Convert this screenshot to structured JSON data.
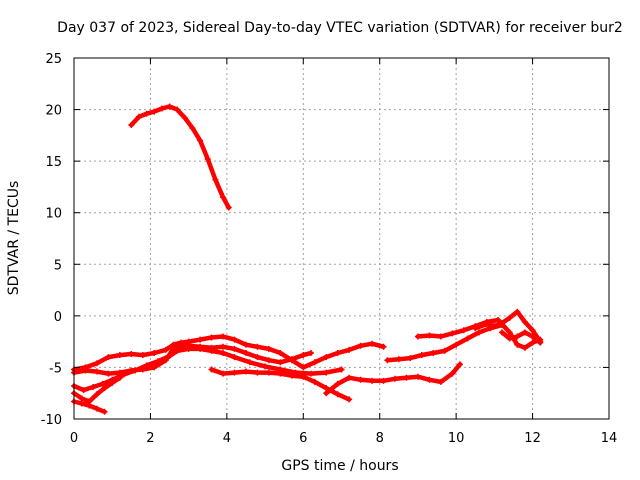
{
  "chart_data": {
    "type": "line",
    "title": "Day 037 of 2023, Sidereal Day-to-day VTEC variation (SDTVAR) for receiver bur2",
    "xlabel": "GPS time / hours",
    "ylabel": "SDTVAR / TECUs",
    "xlim": [
      0,
      14
    ],
    "ylim": [
      -10,
      25
    ],
    "xticks": [
      0,
      2,
      4,
      6,
      8,
      10,
      12,
      14
    ],
    "yticks": [
      -10,
      -5,
      0,
      5,
      10,
      15,
      20,
      25
    ],
    "grid": true,
    "color": "#ff0000",
    "series": [
      {
        "x": [
          1.5,
          1.7,
          1.9,
          2.1,
          2.3,
          2.5,
          2.7,
          2.9,
          3.1,
          3.3,
          3.5,
          3.7,
          3.9,
          4.05
        ],
        "y": [
          18.5,
          19.3,
          19.6,
          19.8,
          20.1,
          20.3,
          20.0,
          19.2,
          18.2,
          17.0,
          15.2,
          13.2,
          11.5,
          10.5
        ]
      },
      {
        "x": [
          0.0,
          0.3,
          0.6,
          0.9,
          1.2,
          1.5,
          1.8,
          2.1,
          2.4,
          2.6,
          2.8,
          3.0,
          3.3,
          3.6,
          3.9,
          4.2,
          4.5,
          4.8,
          5.1,
          5.4,
          5.7,
          6.0,
          6.3,
          6.6,
          6.9,
          7.2,
          7.5,
          7.8,
          8.1
        ],
        "y": [
          -5.2,
          -5.0,
          -4.6,
          -4.0,
          -3.8,
          -3.7,
          -3.8,
          -3.6,
          -3.3,
          -2.8,
          -2.6,
          -2.5,
          -2.3,
          -2.1,
          -2.0,
          -2.3,
          -2.8,
          -3.0,
          -3.2,
          -3.6,
          -4.3,
          -5.0,
          -4.5,
          -4.0,
          -3.6,
          -3.3,
          -2.9,
          -2.7,
          -3.0
        ]
      },
      {
        "x": [
          0.0,
          0.3,
          0.6,
          0.9,
          1.2,
          1.5,
          1.8,
          2.1,
          2.4,
          2.6,
          2.8,
          3.0,
          3.3,
          3.6,
          3.9,
          4.2,
          4.5,
          4.8,
          5.1,
          5.4,
          5.7,
          6.0,
          6.2
        ],
        "y": [
          -5.5,
          -5.3,
          -5.4,
          -5.6,
          -5.5,
          -5.3,
          -5.2,
          -5.0,
          -4.3,
          -3.2,
          -2.9,
          -2.9,
          -3.0,
          -3.1,
          -3.0,
          -3.2,
          -3.6,
          -4.0,
          -4.3,
          -4.5,
          -4.2,
          -3.8,
          -3.6
        ]
      },
      {
        "x": [
          0.0,
          0.25,
          0.5,
          0.75,
          1.0,
          1.3,
          1.6,
          1.9,
          2.2,
          2.5,
          2.7,
          3.0,
          3.3,
          3.6,
          3.9,
          4.2,
          4.6,
          5.0,
          5.4,
          5.8,
          6.2,
          6.6,
          7.0
        ],
        "y": [
          -6.8,
          -7.2,
          -6.9,
          -6.6,
          -6.2,
          -5.7,
          -5.3,
          -4.8,
          -4.4,
          -3.9,
          -3.4,
          -3.2,
          -3.2,
          -3.4,
          -3.6,
          -4.0,
          -4.5,
          -4.9,
          -5.2,
          -5.5,
          -5.6,
          -5.5,
          -5.2
        ]
      },
      {
        "x": [
          0.0,
          0.2,
          0.4,
          0.6,
          0.8,
          1.0,
          1.2
        ],
        "y": [
          -7.5,
          -8.0,
          -8.3,
          -7.6,
          -7.0,
          -6.5,
          -6.0
        ]
      },
      {
        "x": [
          0.0,
          0.2,
          0.4,
          0.6,
          0.8
        ],
        "y": [
          -8.3,
          -8.5,
          -8.7,
          -9.0,
          -9.3
        ]
      },
      {
        "x": [
          3.6,
          3.9,
          4.2,
          4.5,
          4.8,
          5.1,
          5.4,
          5.7,
          6.0,
          6.3,
          6.6,
          6.9,
          7.2
        ],
        "y": [
          -5.2,
          -5.6,
          -5.5,
          -5.4,
          -5.5,
          -5.5,
          -5.6,
          -5.8,
          -5.9,
          -6.4,
          -7.0,
          -7.6,
          -8.1
        ]
      },
      {
        "x": [
          6.6,
          6.9,
          7.2,
          7.5,
          7.8,
          8.1,
          8.4,
          8.7,
          9.0,
          9.3,
          9.6,
          9.9,
          10.1
        ],
        "y": [
          -7.5,
          -6.6,
          -6.0,
          -6.2,
          -6.3,
          -6.3,
          -6.1,
          -6.0,
          -5.9,
          -6.2,
          -6.4,
          -5.6,
          -4.7
        ]
      },
      {
        "x": [
          8.2,
          8.5,
          8.8,
          9.1,
          9.4,
          9.7,
          10.0,
          10.3,
          10.6,
          10.9,
          11.2
        ],
        "y": [
          -4.3,
          -4.2,
          -4.1,
          -3.8,
          -3.6,
          -3.4,
          -2.8,
          -2.2,
          -1.6,
          -1.2,
          -0.9
        ]
      },
      {
        "x": [
          9.0,
          9.3,
          9.6,
          9.9,
          10.2,
          10.5,
          10.8,
          11.1,
          11.4,
          11.6,
          11.8,
          12.0,
          12.2
        ],
        "y": [
          -2.0,
          -1.9,
          -2.0,
          -1.7,
          -1.4,
          -1.0,
          -0.6,
          -0.4,
          -1.6,
          -2.8,
          -3.1,
          -2.6,
          -2.3
        ]
      },
      {
        "x": [
          10.5,
          10.8,
          11.0,
          11.2,
          11.4,
          11.6,
          11.8,
          12.0,
          12.2
        ],
        "y": [
          -1.2,
          -0.8,
          -1.0,
          -0.7,
          -0.2,
          0.4,
          -0.6,
          -1.4,
          -2.5
        ]
      },
      {
        "x": [
          11.2,
          11.4,
          11.6,
          11.8,
          12.0,
          12.2
        ],
        "y": [
          -1.6,
          -2.2,
          -2.0,
          -1.6,
          -2.0,
          -2.6
        ]
      }
    ]
  }
}
